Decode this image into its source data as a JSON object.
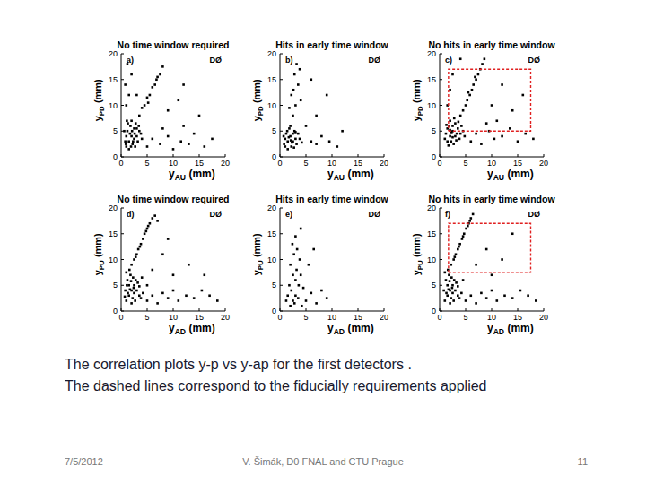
{
  "chart_data": [
    {
      "type": "scatter",
      "title": "No time window required",
      "panel_label": "a)",
      "annotation": "DØ",
      "x_label": "yAU (mm)",
      "y_label": "yPD (mm)",
      "xlim": [
        0,
        20
      ],
      "ylim": [
        0,
        20
      ],
      "xticks": [
        0,
        5,
        10,
        15,
        20
      ],
      "yticks": [
        0,
        5,
        10,
        15,
        20
      ],
      "series": [
        {
          "type": "scatter",
          "marker": "square",
          "color": "#000000",
          "x": [
            1,
            1.5,
            2,
            2.5,
            1.2,
            1.8,
            2.2,
            3,
            3.5,
            2.8,
            1,
            0.8,
            1.5,
            2,
            2.5,
            3.2,
            1.3,
            2.7,
            3.8,
            0.6,
            1.7,
            2.3,
            3,
            1.1,
            2.6,
            1.9,
            3.4,
            0.9,
            2.1,
            4,
            3.5,
            4,
            4.5,
            5,
            5.5,
            6,
            6.5,
            7,
            7.5,
            8,
            5.2,
            6.8,
            5,
            6,
            7.5,
            9,
            10,
            11.5,
            13,
            14,
            16,
            17.5,
            8,
            12,
            1,
            1.5,
            0.8,
            2,
            1.2,
            3,
            9,
            12,
            15,
            11
          ],
          "values": [
            2,
            3,
            4,
            3.5,
            5,
            6,
            2.5,
            4,
            5,
            6.5,
            4,
            3,
            1.5,
            7,
            5.5,
            3,
            6.5,
            2,
            4.5,
            5,
            4.5,
            3,
            5.5,
            7,
            4.5,
            2,
            6,
            2.5,
            5,
            3.5,
            8,
            9.5,
            10,
            11.5,
            12,
            13.5,
            14,
            15.5,
            16,
            17.5,
            10.5,
            15,
            2,
            3.5,
            2.5,
            4,
            1.5,
            3,
            2.5,
            4.5,
            2,
            3.5,
            5.5,
            6,
            10,
            12,
            14,
            16,
            18,
            12,
            9,
            14,
            8,
            11
          ]
        }
      ]
    },
    {
      "type": "scatter",
      "title": "Hits in early time window",
      "panel_label": "b)",
      "annotation": "DØ",
      "x_label": "yAU (mm)",
      "y_label": "yPD (mm)",
      "xlim": [
        0,
        20
      ],
      "ylim": [
        0,
        20
      ],
      "xticks": [
        0,
        5,
        10,
        15,
        20
      ],
      "yticks": [
        0,
        5,
        10,
        15,
        20
      ],
      "series": [
        {
          "type": "scatter",
          "marker": "square",
          "color": "#000000",
          "x": [
            1,
            1.5,
            2,
            2.5,
            1.2,
            1.8,
            2.2,
            3,
            3.5,
            2.8,
            1,
            0.8,
            1.5,
            2,
            2.5,
            3.2,
            1.4,
            2.7,
            3.8,
            0.7,
            1.7,
            2.3,
            3,
            2.1,
            4.2,
            2.5,
            3,
            2.2,
            3.5,
            2.8,
            3.2,
            1.8,
            4,
            2.6,
            3.8,
            6,
            7,
            8,
            9.5,
            11,
            5,
            7,
            9,
            6,
            12
          ],
          "values": [
            2,
            3,
            4,
            3,
            4.5,
            5.5,
            2,
            3.5,
            4.5,
            5,
            3.5,
            2.5,
            1.5,
            6,
            4.5,
            2.5,
            5,
            1.8,
            3.5,
            4,
            3.8,
            2.8,
            4.8,
            3.2,
            2.8,
            8,
            10,
            12,
            14,
            16,
            18,
            9.5,
            11,
            13,
            17,
            3,
            2.5,
            4,
            3,
            2,
            6,
            8,
            12,
            15,
            5
          ]
        }
      ]
    },
    {
      "type": "scatter",
      "title": "No hits in early time window",
      "panel_label": "c)",
      "annotation": "DØ",
      "x_label": "yAU (mm)",
      "y_label": "yPD (mm)",
      "xlim": [
        0,
        20
      ],
      "ylim": [
        0,
        20
      ],
      "xticks": [
        0,
        5,
        10,
        15,
        20
      ],
      "yticks": [
        0,
        5,
        10,
        15,
        20
      ],
      "series": [
        {
          "type": "scatter",
          "marker": "square",
          "color": "#000000",
          "x": [
            1.5,
            2,
            2.5,
            3,
            1.8,
            2.2,
            3.5,
            3,
            4,
            2.7,
            1.2,
            2,
            2.5,
            3.8,
            1.5,
            4.5,
            2.3,
            3.2,
            1,
            2.8,
            3.6,
            4.2,
            1.7,
            2.5,
            3.3,
            1.3,
            4.8,
            2,
            4,
            4.5,
            5,
            5.3,
            5.8,
            6.2,
            6.5,
            7,
            7.4,
            7.8,
            8.2,
            8.6,
            5.5,
            6.8,
            6,
            7,
            8,
            9.5,
            10.5,
            12,
            13.5,
            15,
            16.5,
            18,
            9,
            11,
            1.5,
            2,
            2.5,
            10,
            12,
            14,
            4,
            16
          ],
          "values": [
            3,
            4,
            5,
            4,
            6,
            3,
            5.5,
            6.5,
            4.5,
            2.5,
            4.5,
            7,
            6,
            3.5,
            5.5,
            5,
            4.8,
            3.2,
            3.5,
            7.5,
            6.8,
            6,
            2.2,
            3.8,
            4.5,
            6.2,
            4,
            5.2,
            8,
            9,
            10,
            11,
            12,
            13,
            14,
            15,
            16,
            17,
            18,
            19,
            12.5,
            15.5,
            3,
            4.5,
            2.5,
            5,
            3.5,
            4,
            5.5,
            3,
            4.5,
            3.5,
            6.5,
            7,
            10,
            13,
            16,
            10,
            14,
            9,
            19,
            12
          ]
        },
        {
          "type": "line",
          "line_style": "dashed",
          "color": "#e02020",
          "x": [
            1.7,
            17.5,
            17.5,
            1.7,
            1.7
          ],
          "values": [
            5,
            5,
            17,
            17,
            5
          ]
        }
      ]
    },
    {
      "type": "scatter",
      "title": "No time window required",
      "panel_label": "d)",
      "annotation": "DØ",
      "x_label": "yAD (mm)",
      "y_label": "yPU (mm)",
      "xlim": [
        0,
        20
      ],
      "ylim": [
        0,
        20
      ],
      "xticks": [
        0,
        5,
        10,
        15,
        20
      ],
      "yticks": [
        0,
        5,
        10,
        15,
        20
      ],
      "series": [
        {
          "type": "scatter",
          "marker": "square",
          "color": "#000000",
          "x": [
            1,
            1.5,
            2,
            2.5,
            1.2,
            1.8,
            2.2,
            3,
            3.5,
            0.8,
            1.5,
            2.8,
            2,
            3.2,
            1,
            2.5,
            1.7,
            3.8,
            0.7,
            2.3,
            1.3,
            2.7,
            3.5,
            1.9,
            1.1,
            2.4,
            4.2,
            1.6,
            2,
            2.5,
            3,
            3.3,
            3.8,
            4.2,
            4.5,
            5,
            5.5,
            6,
            6.5,
            2.8,
            3.6,
            4.8,
            5.2,
            7,
            5,
            6,
            7,
            8,
            9,
            10,
            11,
            12.5,
            14,
            15.5,
            17,
            18.5,
            6,
            8,
            10,
            13,
            4,
            5,
            16,
            9
          ],
          "values": [
            2,
            3,
            4,
            5,
            6,
            7,
            2.5,
            4,
            3,
            4,
            5,
            6,
            1.5,
            5.5,
            7.5,
            3.5,
            4.2,
            2.5,
            2.8,
            6.5,
            3.5,
            2,
            4.8,
            5.8,
            5,
            4.5,
            3.5,
            8,
            9,
            10,
            11,
            12,
            13,
            14,
            15,
            16,
            17,
            18,
            18.5,
            10.5,
            12.5,
            15.5,
            16.5,
            17.5,
            2,
            3,
            1.5,
            3.5,
            2.5,
            4,
            2,
            3,
            2.5,
            4,
            3,
            2,
            8,
            11,
            7,
            9,
            6.5,
            5,
            7,
            14
          ]
        }
      ]
    },
    {
      "type": "scatter",
      "title": "Hits in early time window",
      "panel_label": "e)",
      "annotation": "DØ",
      "x_label": "yAD (mm)",
      "y_label": "yPU (mm)",
      "xlim": [
        0,
        20
      ],
      "ylim": [
        0,
        20
      ],
      "xticks": [
        0,
        5,
        10,
        15,
        20
      ],
      "yticks": [
        0,
        5,
        10,
        15,
        20
      ],
      "series": [
        {
          "type": "scatter",
          "marker": "square",
          "color": "#000000",
          "x": [
            2,
            2.5,
            3,
            2.2,
            3.5,
            1.8,
            3,
            2.5,
            3.2,
            2,
            3.8,
            2.7,
            3.3,
            2.4,
            3,
            4,
            1.5,
            4.5,
            5,
            6,
            7,
            8,
            9,
            4,
            5.5,
            6.5,
            3.6,
            2.8,
            1.2,
            4.2
          ],
          "values": [
            1,
            2,
            3,
            4,
            2.5,
            5,
            6,
            7,
            8,
            9,
            10,
            11,
            12,
            13,
            14.5,
            16,
            3,
            4.5,
            2,
            3.5,
            1.5,
            4,
            2.5,
            7,
            9,
            12,
            5,
            1.5,
            2,
            1
          ]
        }
      ]
    },
    {
      "type": "scatter",
      "title": "No hits in early time window",
      "panel_label": "f)",
      "annotation": "DØ",
      "x_label": "yAD (mm)",
      "y_label": "yPU (mm)",
      "xlim": [
        0,
        20
      ],
      "ylim": [
        0,
        20
      ],
      "xticks": [
        0,
        5,
        10,
        15,
        20
      ],
      "yticks": [
        0,
        5,
        10,
        15,
        20
      ],
      "series": [
        {
          "type": "scatter",
          "marker": "square",
          "color": "#000000",
          "x": [
            1,
            1.5,
            2,
            2.5,
            1.2,
            1.8,
            2.2,
            3,
            3.5,
            0.8,
            1.5,
            2.8,
            2,
            3.2,
            1,
            2.5,
            1.7,
            3.8,
            2.3,
            1.3,
            2.7,
            3.5,
            1.9,
            2.4,
            4.2,
            1.6,
            2.2,
            2.7,
            3.1,
            3.5,
            3.9,
            4.3,
            4.7,
            5.1,
            5.6,
            6,
            6.4,
            2.9,
            3.7,
            4.5,
            5.4,
            5.8,
            5,
            6,
            7,
            8,
            9,
            10,
            11,
            12.5,
            14,
            15.5,
            17,
            18.5,
            7,
            9,
            12,
            14,
            4.5,
            10
          ],
          "values": [
            2,
            3,
            4,
            5,
            6,
            7,
            2.5,
            4,
            3,
            4,
            5,
            6,
            1.5,
            5.5,
            7.5,
            3.5,
            4.2,
            2.5,
            6.5,
            3.5,
            2,
            4.8,
            5.8,
            4.5,
            3.5,
            8,
            9,
            10,
            11,
            12,
            13,
            14,
            15,
            16,
            17,
            18,
            18.8,
            10.5,
            12.5,
            14.5,
            16.5,
            17.5,
            2,
            3,
            1.5,
            3.5,
            2.5,
            4,
            2,
            3,
            2.5,
            4,
            3,
            2,
            9,
            12,
            10,
            15,
            6,
            7
          ]
        },
        {
          "type": "line",
          "line_style": "dashed",
          "color": "#e02020",
          "x": [
            1.7,
            17.5,
            17.5,
            1.7,
            1.7
          ],
          "values": [
            7.5,
            7.5,
            17,
            17,
            7.5
          ]
        }
      ]
    }
  ],
  "caption": [
    "The correlation plots y-p vs y-ap for the first detectors .",
    "The dashed lines correspond to the fiducially  requirements applied"
  ],
  "footer": {
    "date": "7/5/2012",
    "author": "V. Šimák, D0 FNAL and CTU Prague",
    "page": "11"
  }
}
